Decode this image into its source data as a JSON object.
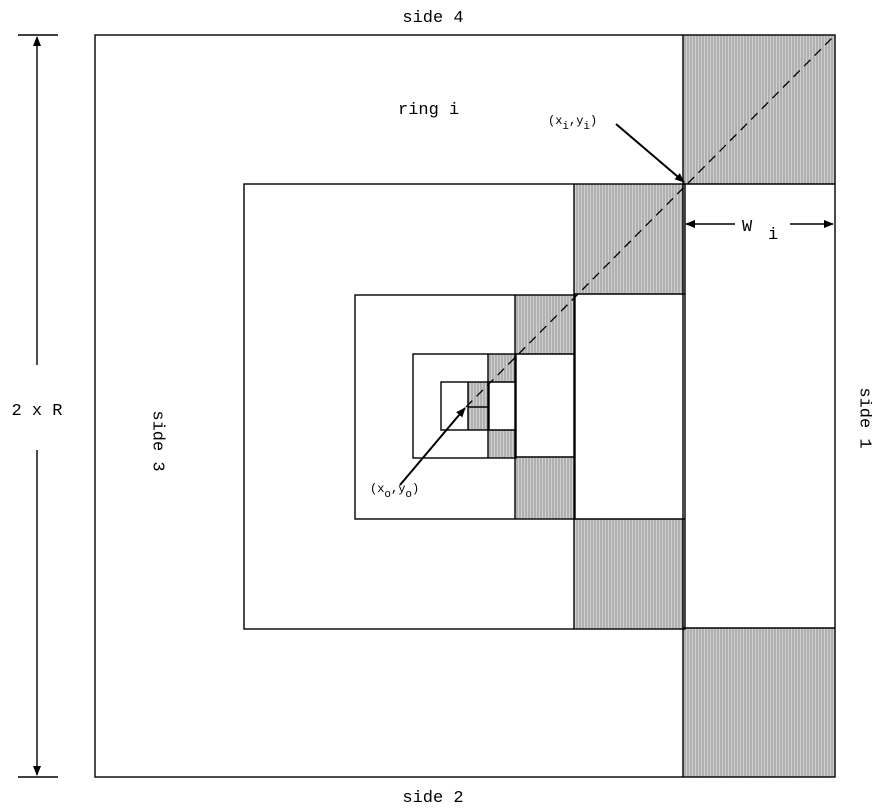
{
  "labels": {
    "side_top": "side 4",
    "side_bottom": "side 2",
    "side_left": "side 3",
    "side_right": "side 1",
    "ring": "ring i",
    "diameter": "2 x R",
    "width": "W",
    "width_sub": "i",
    "outer_point": {
      "open": "(x",
      "sub_x": "i",
      "comma": ",y",
      "sub_y": "i",
      "close": ")"
    },
    "origin_point": {
      "open": "(x",
      "sub_x": "o",
      "comma": ",y",
      "sub_y": "o",
      "close": ")"
    }
  },
  "colors": {
    "line": "#000000",
    "hatch_fill": "#c8c8c8",
    "hatch_line": "#8c8c8c",
    "background": "#ffffff"
  }
}
